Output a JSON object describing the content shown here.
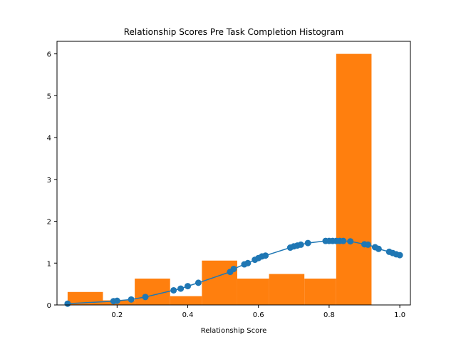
{
  "chart_data": {
    "type": "bar",
    "title": "Relationship Scores Pre Task Completion Histogram",
    "xlabel": "Relationship Score",
    "ylabel": "",
    "xlim": [
      0.03,
      1.03
    ],
    "ylim": [
      0,
      6.3
    ],
    "x_ticks": [
      0.2,
      0.4,
      0.6,
      0.8,
      1.0
    ],
    "x_tick_labels": [
      "0.2",
      "0.4",
      "0.6",
      "0.8",
      "1.0"
    ],
    "y_ticks": [
      0,
      1,
      2,
      3,
      4,
      5,
      6
    ],
    "y_tick_labels": [
      "0",
      "1",
      "2",
      "3",
      "4",
      "5",
      "6"
    ],
    "grid": false,
    "colors": {
      "histogram": "#ff7f0e",
      "density": "#1f77b4"
    },
    "histogram": {
      "bin_edges": [
        0.06,
        0.16,
        0.25,
        0.35,
        0.44,
        0.54,
        0.63,
        0.73,
        0.82,
        0.92,
        1.01
      ],
      "values": [
        0.31,
        0.11,
        0.63,
        0.21,
        1.06,
        0.63,
        0.74,
        0.63,
        6.0,
        0.0
      ]
    },
    "density": {
      "x": [
        0.06,
        0.19,
        0.2,
        0.24,
        0.28,
        0.36,
        0.38,
        0.4,
        0.43,
        0.52,
        0.53,
        0.56,
        0.57,
        0.59,
        0.6,
        0.61,
        0.62,
        0.69,
        0.7,
        0.71,
        0.72,
        0.74,
        0.79,
        0.8,
        0.81,
        0.82,
        0.83,
        0.84,
        0.86,
        0.9,
        0.91,
        0.93,
        0.94,
        0.97,
        0.98,
        0.99,
        1.0
      ],
      "y": [
        0.03,
        0.09,
        0.1,
        0.13,
        0.19,
        0.35,
        0.39,
        0.45,
        0.53,
        0.79,
        0.86,
        0.97,
        1.0,
        1.08,
        1.12,
        1.16,
        1.18,
        1.37,
        1.4,
        1.42,
        1.44,
        1.48,
        1.53,
        1.53,
        1.53,
        1.53,
        1.53,
        1.53,
        1.52,
        1.45,
        1.44,
        1.38,
        1.34,
        1.27,
        1.24,
        1.21,
        1.19
      ]
    }
  }
}
